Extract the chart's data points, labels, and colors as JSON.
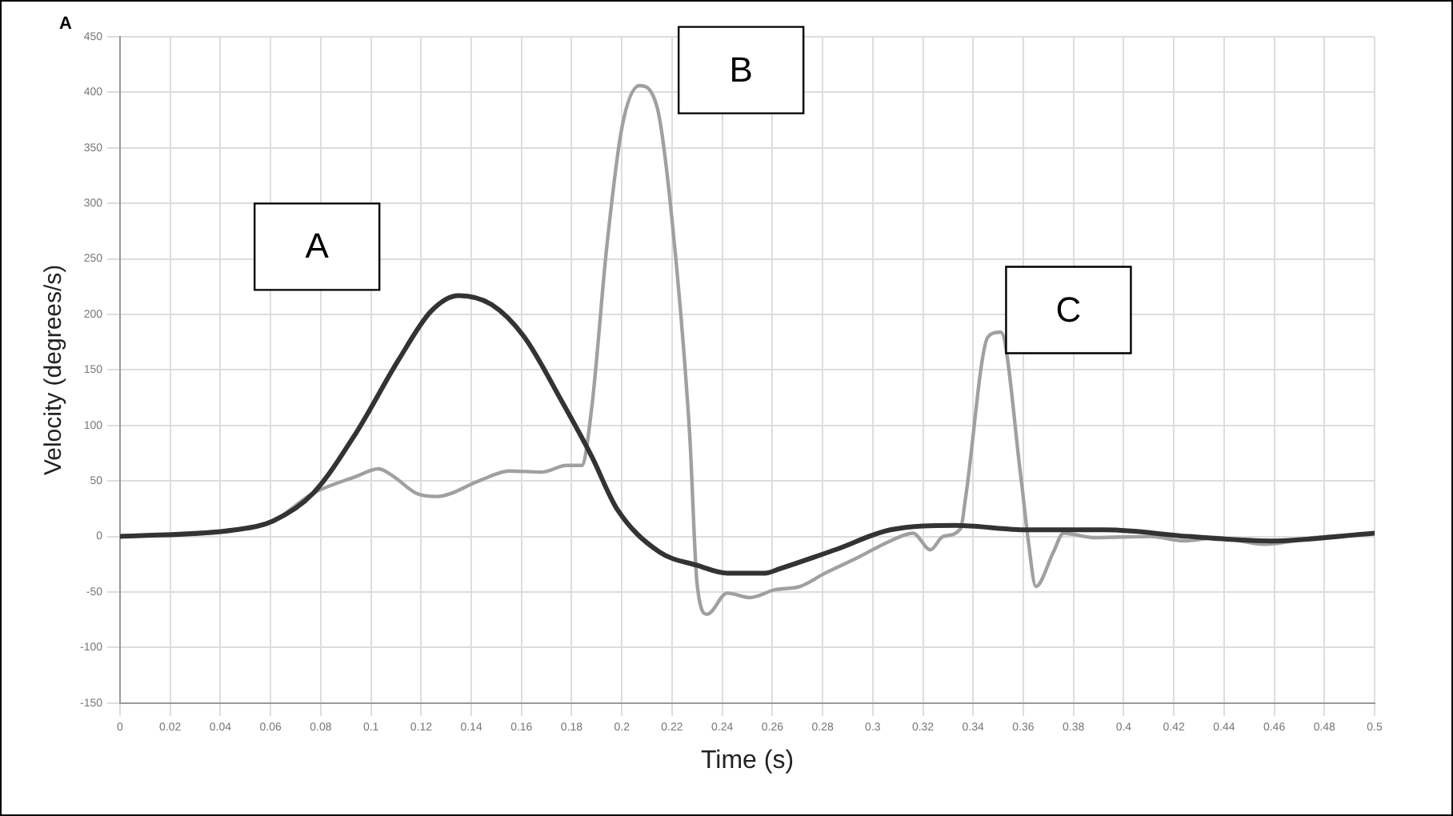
{
  "chart_data": {
    "type": "line",
    "xlabel": "Time (s)",
    "ylabel": "Velocity (degrees/s)",
    "xlim": [
      0,
      0.5
    ],
    "xticks": [
      0,
      0.02,
      0.04,
      0.06,
      0.08,
      0.1,
      0.12,
      0.14,
      0.16,
      0.18,
      0.2,
      0.22,
      0.24,
      0.26,
      0.28,
      0.3,
      0.32,
      0.34,
      0.36,
      0.38,
      0.4,
      0.42,
      0.44,
      0.46,
      0.48,
      0.5
    ],
    "ylim": [
      -150,
      450
    ],
    "yticks": [
      -150,
      -100,
      -50,
      0,
      50,
      100,
      150,
      200,
      250,
      300,
      350,
      400,
      450
    ],
    "grid": true,
    "legend": false,
    "marker": "none",
    "line_style": "solid",
    "annotations": [
      "A",
      "A",
      "B",
      "C"
    ],
    "series": [
      {
        "color": "#333333",
        "x": [
          0,
          0.046,
          0.061,
          0.077,
          0.094,
          0.111,
          0.124,
          0.135,
          0.148,
          0.161,
          0.176,
          0.188,
          0.198,
          0.215,
          0.23,
          0.242,
          0.257,
          0.263,
          0.285,
          0.307,
          0.333,
          0.361,
          0.393,
          0.426,
          0.458,
          0.5
        ],
        "values": [
          0,
          6,
          14,
          39,
          93,
          159,
          203,
          217,
          209,
          180,
          122,
          72,
          25,
          -14,
          -26,
          -33,
          -33,
          -29,
          -12,
          6,
          10,
          6,
          6,
          0,
          -4,
          3
        ]
      },
      {
        "color": "#a0a0a0",
        "x": [
          0,
          0.046,
          0.061,
          0.077,
          0.094,
          0.103,
          0.109,
          0.118,
          0.126,
          0.144,
          0.155,
          0.168,
          0.178,
          0.184,
          0.188,
          0.194,
          0.2,
          0.207,
          0.214,
          0.22,
          0.227,
          0.23,
          0.234,
          0.242,
          0.251,
          0.261,
          0.271,
          0.281,
          0.294,
          0.307,
          0.316,
          0.323,
          0.328,
          0.335,
          0.337,
          0.346,
          0.351,
          0.359,
          0.362,
          0.365,
          0.372,
          0.376,
          0.388,
          0.411,
          0.424,
          0.437,
          0.456,
          0.476,
          0.5
        ],
        "values": [
          0,
          6,
          14,
          39,
          54,
          61,
          54,
          39,
          36,
          51,
          59,
          58,
          64,
          64,
          116,
          261,
          368,
          406,
          387,
          285,
          93,
          -43,
          -70,
          -51,
          -55,
          -48,
          -45,
          -33,
          -19,
          -4,
          3,
          -12,
          0,
          7,
          35,
          180,
          184,
          54,
          -4,
          -45,
          -14,
          3,
          -1,
          0,
          -4,
          -1,
          -7,
          -1,
          3
        ]
      }
    ]
  }
}
